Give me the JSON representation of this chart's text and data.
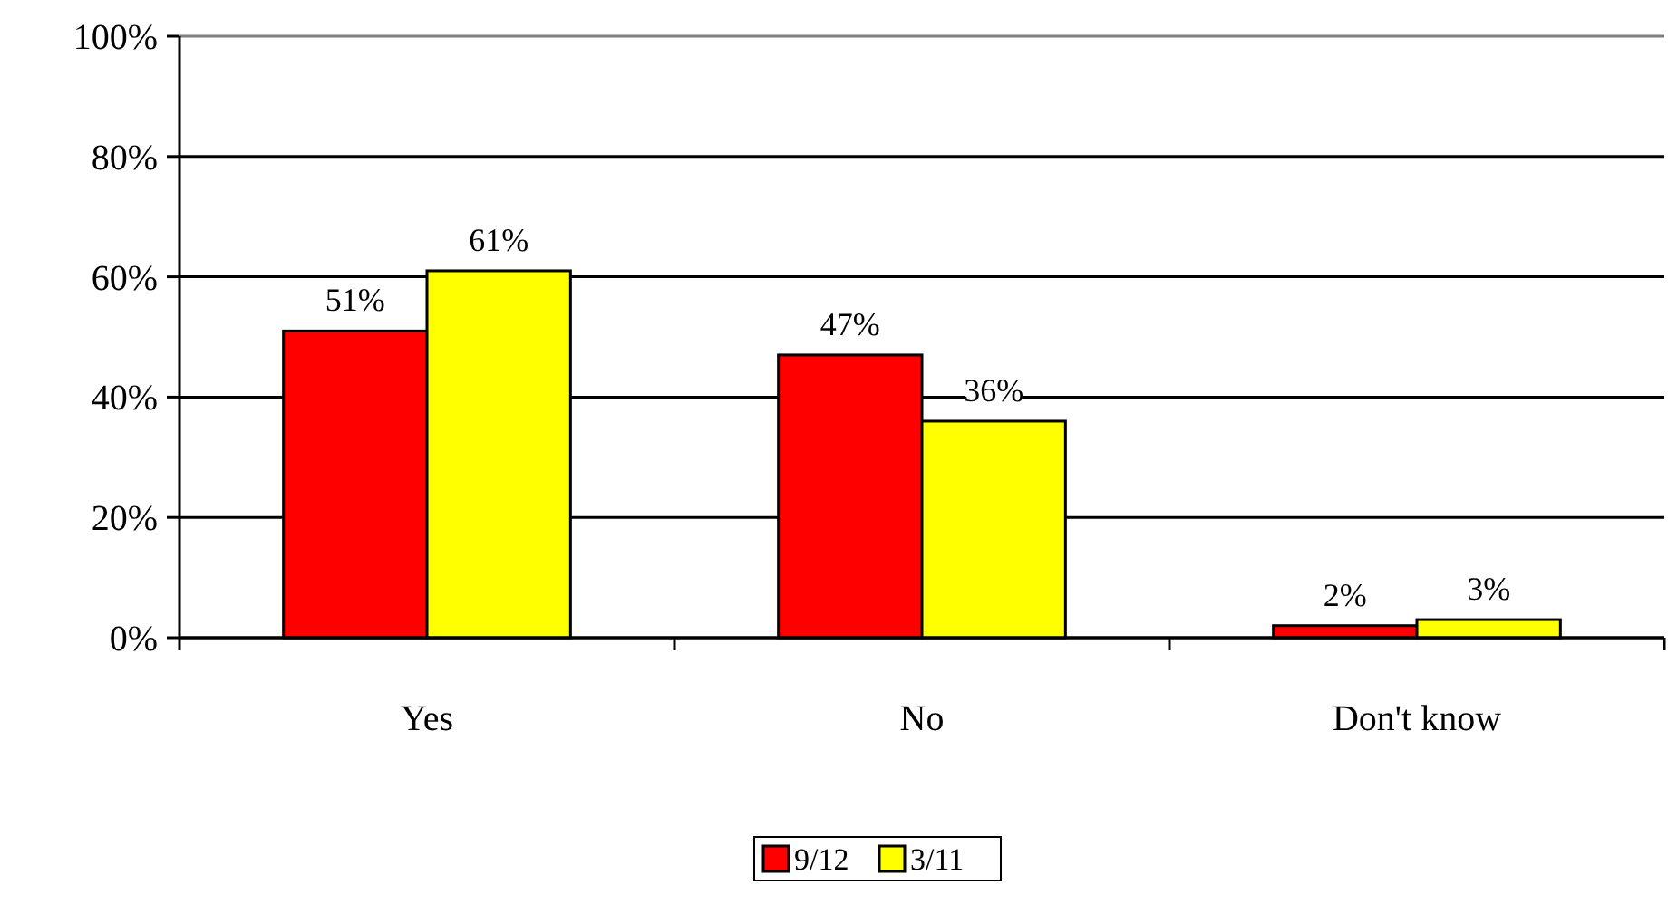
{
  "chart_data": {
    "type": "bar",
    "categories": [
      "Yes",
      "No",
      "Don't know"
    ],
    "series": [
      {
        "name": "9/12",
        "color": "#ff0000",
        "values": [
          51,
          47,
          2
        ],
        "value_labels": [
          "51%",
          "47%",
          "2%"
        ]
      },
      {
        "name": "3/11",
        "color": "#ffff00",
        "values": [
          61,
          36,
          3
        ],
        "value_labels": [
          "61%",
          "36%",
          "3%"
        ]
      }
    ],
    "ylim": [
      0,
      100
    ],
    "yticks": [
      {
        "value": 0,
        "label": "0%"
      },
      {
        "value": 20,
        "label": "20%"
      },
      {
        "value": 40,
        "label": "40%"
      },
      {
        "value": 60,
        "label": "60%"
      },
      {
        "value": 80,
        "label": "80%"
      },
      {
        "value": 100,
        "label": "100%"
      }
    ],
    "grid": "y",
    "legend": "bottom"
  }
}
